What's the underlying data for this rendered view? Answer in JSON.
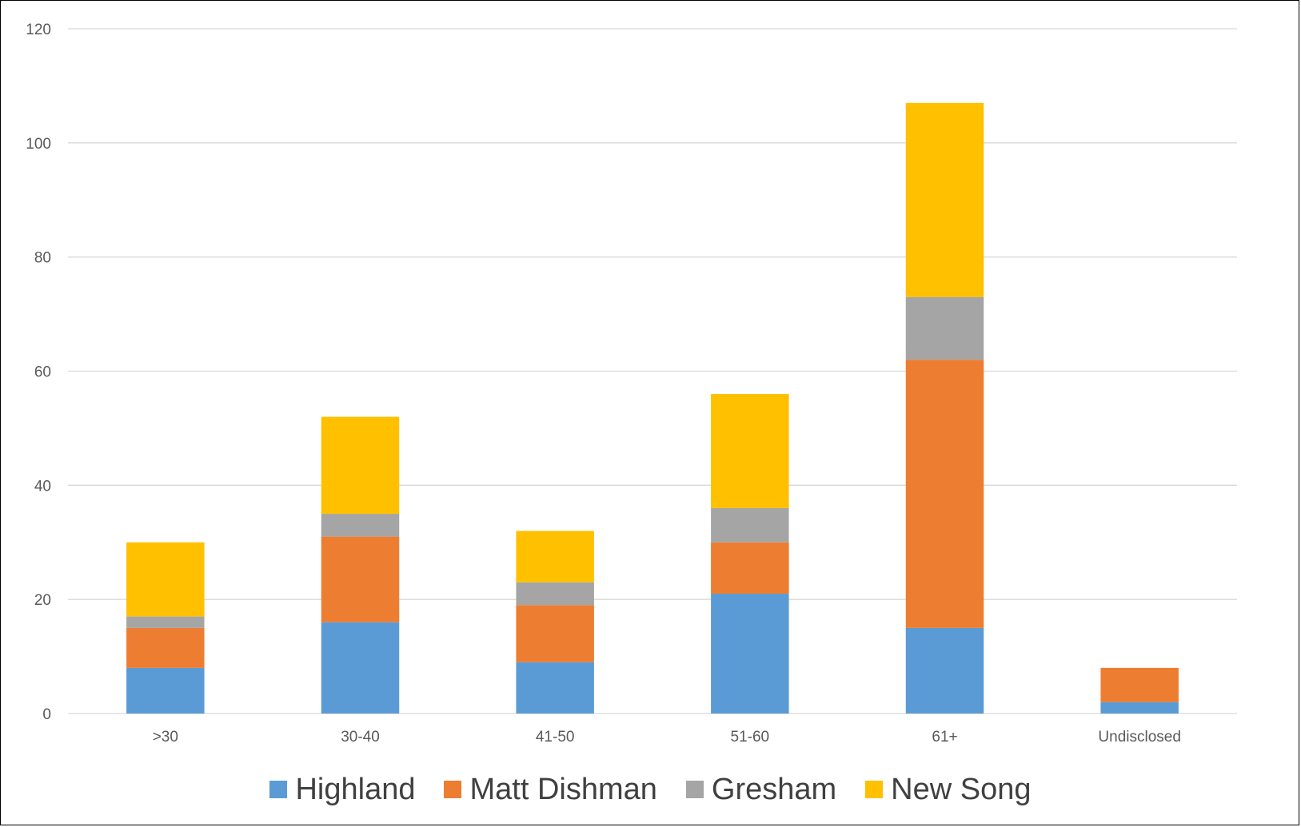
{
  "chart_data": {
    "type": "bar",
    "stacked": true,
    "categories": [
      ">30",
      "30-40",
      "41-50",
      "51-60",
      "61+",
      "Undisclosed"
    ],
    "series": [
      {
        "name": "Highland",
        "color": "#5b9bd5",
        "values": [
          8,
          16,
          9,
          21,
          15,
          2
        ]
      },
      {
        "name": "Matt Dishman",
        "color": "#ed7d31",
        "values": [
          7,
          15,
          10,
          9,
          47,
          6
        ]
      },
      {
        "name": "Gresham",
        "color": "#a5a5a5",
        "values": [
          2,
          4,
          4,
          6,
          11,
          0
        ]
      },
      {
        "name": "New Song",
        "color": "#ffc000",
        "values": [
          13,
          17,
          9,
          20,
          34,
          0
        ]
      }
    ],
    "ylim": [
      0,
      120
    ],
    "yticks": [
      0,
      20,
      40,
      60,
      80,
      100,
      120
    ],
    "grid": true,
    "legend_position": "bottom"
  }
}
